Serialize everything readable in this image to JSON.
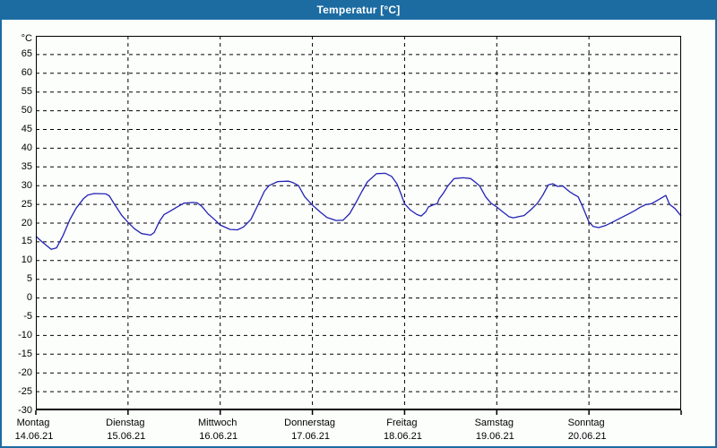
{
  "window": {
    "title": "Temperatur [°C]"
  },
  "colors": {
    "accent": "#1c6ca2",
    "line": "#2222b4",
    "grid": "#000000",
    "background": "#fcfefc",
    "title_text": "#ffffff"
  },
  "chart_data": {
    "type": "line",
    "title": "Temperatur [°C]",
    "y_unit_label": "°C",
    "ylim": [
      -30,
      70
    ],
    "y_tick_step": 5,
    "y_ticks": [
      -30,
      -25,
      -20,
      -15,
      -10,
      -5,
      0,
      5,
      10,
      15,
      20,
      25,
      30,
      35,
      40,
      45,
      50,
      55,
      60,
      65
    ],
    "grid": "dashed",
    "legend": "none",
    "x_total_hours": 168,
    "days": [
      {
        "label": "Montag",
        "date": "14.06.21"
      },
      {
        "label": "Dienstag",
        "date": "15.06.21"
      },
      {
        "label": "Mittwoch",
        "date": "16.06.21"
      },
      {
        "label": "Donnerstag",
        "date": "17.06.21"
      },
      {
        "label": "Freitag",
        "date": "18.06.21"
      },
      {
        "label": "Samstag",
        "date": "19.06.21"
      },
      {
        "label": "Sonntag",
        "date": "20.06.21"
      }
    ],
    "series": [
      {
        "name": "Temperatur",
        "points": [
          [
            0,
            16.5
          ],
          [
            1.6,
            15
          ],
          [
            4,
            13
          ],
          [
            5.4,
            13.4
          ],
          [
            7,
            16.5
          ],
          [
            8.9,
            21
          ],
          [
            10.5,
            24
          ],
          [
            12.4,
            26.5
          ],
          [
            13.5,
            27.5
          ],
          [
            15.2,
            27.9
          ],
          [
            18.2,
            27.8
          ],
          [
            19.1,
            27.3
          ],
          [
            20.3,
            25.3
          ],
          [
            22.4,
            22
          ],
          [
            24,
            20.2
          ],
          [
            25.7,
            18.5
          ],
          [
            27.5,
            17.2
          ],
          [
            29.9,
            16.8
          ],
          [
            30.8,
            17.5
          ],
          [
            32.2,
            20.5
          ],
          [
            33.4,
            22.3
          ],
          [
            35,
            23.2
          ],
          [
            36.6,
            24.2
          ],
          [
            38.5,
            25.3
          ],
          [
            40.8,
            25.5
          ],
          [
            42,
            25.4
          ],
          [
            43.2,
            24.5
          ],
          [
            44.8,
            22.5
          ],
          [
            46.7,
            20.8
          ],
          [
            48,
            19.5
          ],
          [
            49.5,
            18.8
          ],
          [
            50.6,
            18.3
          ],
          [
            52.5,
            18.2
          ],
          [
            54.1,
            19
          ],
          [
            56,
            21
          ],
          [
            57.9,
            25
          ],
          [
            59.5,
            28.5
          ],
          [
            60.7,
            30
          ],
          [
            63,
            31.1
          ],
          [
            65.8,
            31.2
          ],
          [
            67,
            30.8
          ],
          [
            68.4,
            30
          ],
          [
            70,
            27
          ],
          [
            72,
            24.8
          ],
          [
            74,
            23
          ],
          [
            75.8,
            21.5
          ],
          [
            78.2,
            20.7
          ],
          [
            80,
            20.8
          ],
          [
            81.7,
            22.5
          ],
          [
            83.1,
            25
          ],
          [
            84.9,
            28.5
          ],
          [
            86.3,
            31
          ],
          [
            88.7,
            33.2
          ],
          [
            91,
            33.3
          ],
          [
            92.6,
            32.5
          ],
          [
            94,
            30.5
          ],
          [
            95,
            28
          ],
          [
            96,
            25.2
          ],
          [
            97.5,
            23.5
          ],
          [
            99.2,
            22.3
          ],
          [
            100.3,
            21.9
          ],
          [
            101.5,
            23
          ],
          [
            102.2,
            24.3
          ],
          [
            103.3,
            24.8
          ],
          [
            104.5,
            25.2
          ],
          [
            105,
            26.5
          ],
          [
            106.1,
            28
          ],
          [
            107.3,
            30
          ],
          [
            108.9,
            31.9
          ],
          [
            111.3,
            32.1
          ],
          [
            113.2,
            31.9
          ],
          [
            114.3,
            31
          ],
          [
            115.5,
            30
          ],
          [
            117.1,
            27
          ],
          [
            118.5,
            25.3
          ],
          [
            120,
            24.3
          ],
          [
            121.3,
            23.2
          ],
          [
            123.2,
            21.7
          ],
          [
            124.3,
            21.4
          ],
          [
            126,
            21.8
          ],
          [
            127.1,
            22
          ],
          [
            128.8,
            23.5
          ],
          [
            130.6,
            25.3
          ],
          [
            132,
            27.5
          ],
          [
            133.4,
            30.2
          ],
          [
            134.6,
            30.5
          ],
          [
            135.8,
            29.8
          ],
          [
            137.2,
            29.9
          ],
          [
            138.8,
            28.5
          ],
          [
            140,
            27.7
          ],
          [
            141.2,
            27
          ],
          [
            142.3,
            24.5
          ],
          [
            144,
            20.3
          ],
          [
            145.1,
            19.1
          ],
          [
            146.5,
            18.8
          ],
          [
            148.2,
            19.3
          ],
          [
            150,
            20.2
          ],
          [
            152.1,
            21.3
          ],
          [
            154,
            22.3
          ],
          [
            155.9,
            23.3
          ],
          [
            157.3,
            24.2
          ],
          [
            158.7,
            24.9
          ],
          [
            160.3,
            25.2
          ],
          [
            162.2,
            26.3
          ],
          [
            164,
            27.4
          ],
          [
            165,
            25
          ],
          [
            166.4,
            23.9
          ],
          [
            168,
            21.9
          ]
        ]
      }
    ]
  }
}
